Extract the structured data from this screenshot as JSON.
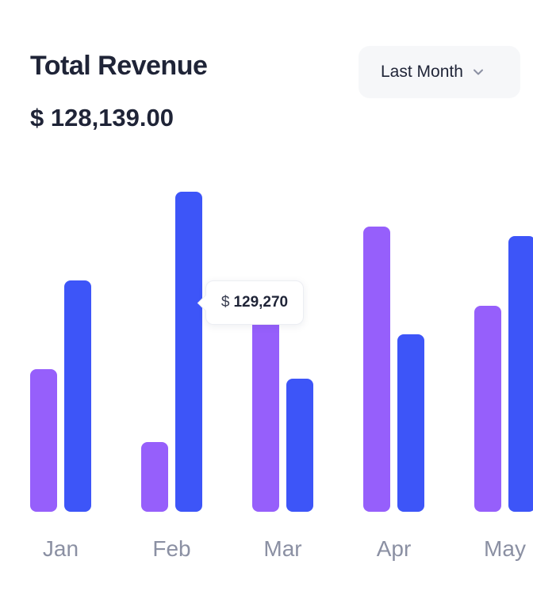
{
  "header": {
    "title": "Total Revenue",
    "total": "$ 128,139.00",
    "period_dropdown": {
      "selected": "Last Month",
      "icon": "chevron-down-icon"
    }
  },
  "tooltip": {
    "currency": "$",
    "value": "129,270"
  },
  "colors": {
    "series_a": "#965ffb",
    "series_b": "#3d55f8",
    "axis_label": "#8b90a3"
  },
  "chart_data": {
    "type": "bar",
    "title": "Total Revenue",
    "xlabel": "",
    "ylabel": "",
    "categories": [
      "Jan",
      "Feb",
      "Mar",
      "Apr",
      "May"
    ],
    "series": [
      {
        "values": [
          45000,
          22000,
          64000,
          90000,
          65000
        ]
      },
      {
        "values": [
          73000,
          101000,
          42000,
          56000,
          87000
        ]
      }
    ],
    "ylim": [
      0,
      105000
    ],
    "grid": false,
    "legend": "none"
  }
}
